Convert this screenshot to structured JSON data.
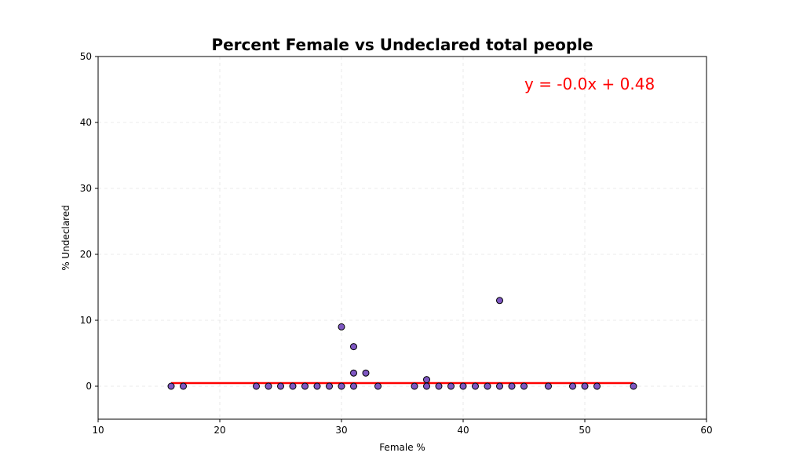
{
  "chart_data": {
    "type": "scatter",
    "title": "Percent Female vs Undeclared total people",
    "xlabel": "Female %",
    "ylabel": "% Undeclared",
    "xlim": [
      10,
      60
    ],
    "ylim": [
      -5,
      50
    ],
    "x_ticks": [
      10,
      20,
      30,
      40,
      50,
      60
    ],
    "y_ticks": [
      0,
      10,
      20,
      30,
      40,
      50
    ],
    "grid": true,
    "point_color": "#7e57c2",
    "line_color": "#ff0000",
    "annotation": "y = -0.0x + 0.48",
    "regression": {
      "slope": 0.0,
      "intercept": 0.48,
      "x_range": [
        16,
        54
      ]
    },
    "points": [
      {
        "x": 16,
        "y": 0
      },
      {
        "x": 17,
        "y": 0
      },
      {
        "x": 23,
        "y": 0
      },
      {
        "x": 24,
        "y": 0
      },
      {
        "x": 25,
        "y": 0
      },
      {
        "x": 26,
        "y": 0
      },
      {
        "x": 27,
        "y": 0
      },
      {
        "x": 28,
        "y": 0
      },
      {
        "x": 29,
        "y": 0
      },
      {
        "x": 30,
        "y": 0
      },
      {
        "x": 30,
        "y": 9
      },
      {
        "x": 31,
        "y": 0
      },
      {
        "x": 31,
        "y": 2
      },
      {
        "x": 31,
        "y": 6
      },
      {
        "x": 32,
        "y": 2
      },
      {
        "x": 33,
        "y": 0
      },
      {
        "x": 36,
        "y": 0
      },
      {
        "x": 37,
        "y": 0
      },
      {
        "x": 37,
        "y": 1
      },
      {
        "x": 38,
        "y": 0
      },
      {
        "x": 39,
        "y": 0
      },
      {
        "x": 40,
        "y": 0
      },
      {
        "x": 41,
        "y": 0
      },
      {
        "x": 42,
        "y": 0
      },
      {
        "x": 43,
        "y": 0
      },
      {
        "x": 43,
        "y": 13
      },
      {
        "x": 44,
        "y": 0
      },
      {
        "x": 45,
        "y": 0
      },
      {
        "x": 47,
        "y": 0
      },
      {
        "x": 49,
        "y": 0
      },
      {
        "x": 50,
        "y": 0
      },
      {
        "x": 51,
        "y": 0
      },
      {
        "x": 54,
        "y": 0
      }
    ]
  }
}
